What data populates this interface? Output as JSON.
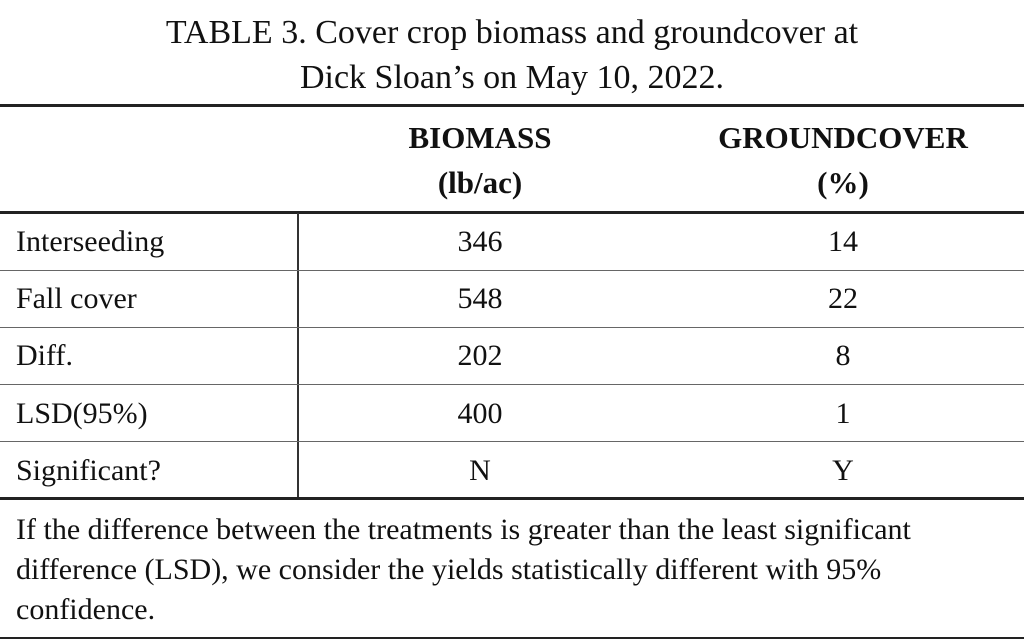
{
  "title": [
    "TABLE 3. Cover crop biomass and groundcover at",
    "Dick Sloan’s on May 10, 2022."
  ],
  "table": {
    "columns": [
      [
        "BIOMASS",
        "(lb/ac)"
      ],
      [
        "GROUNDCOVER",
        "(%)"
      ]
    ],
    "rows": [
      [
        "Interseeding",
        346,
        14
      ],
      [
        "Fall cover",
        548,
        22
      ],
      [
        "Diff.",
        202,
        8
      ],
      [
        "LSD(95%)",
        400,
        1
      ],
      [
        "Significant?",
        "N",
        "Y"
      ]
    ]
  },
  "footnote": "If the difference between the treatments is greater than the least significant difference (LSD), we consider the yields statistically different with 95% confidence."
}
